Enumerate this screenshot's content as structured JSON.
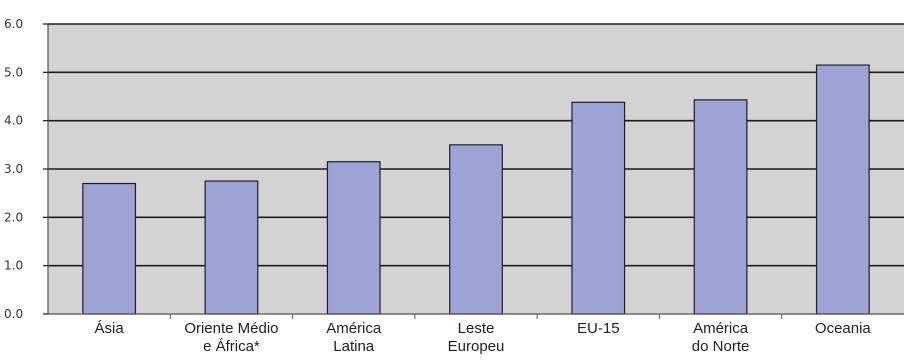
{
  "chart_data": {
    "type": "bar",
    "categories": [
      [
        "Ásia"
      ],
      [
        "Oriente Médio",
        "e África*"
      ],
      [
        "América",
        "Latina"
      ],
      [
        "Leste",
        "Europeu"
      ],
      [
        "EU-15"
      ],
      [
        "América",
        "do Norte"
      ],
      [
        "Oceania"
      ]
    ],
    "values": [
      2.7,
      2.75,
      3.15,
      3.5,
      4.38,
      4.43,
      5.15
    ],
    "ylim": [
      0,
      6
    ],
    "yticks": [
      "0.0",
      "1.0",
      "2.0",
      "3.0",
      "4.0",
      "5.0",
      "6.0"
    ],
    "title": "",
    "xlabel": "",
    "ylabel": "",
    "grid": true,
    "legend": "none",
    "colors": {
      "bar_fill": "#9ea3d6",
      "bar_stroke": "#1e1e2a",
      "plot_background": "#d3d3d3",
      "gridline": "#1c1c1c"
    }
  }
}
